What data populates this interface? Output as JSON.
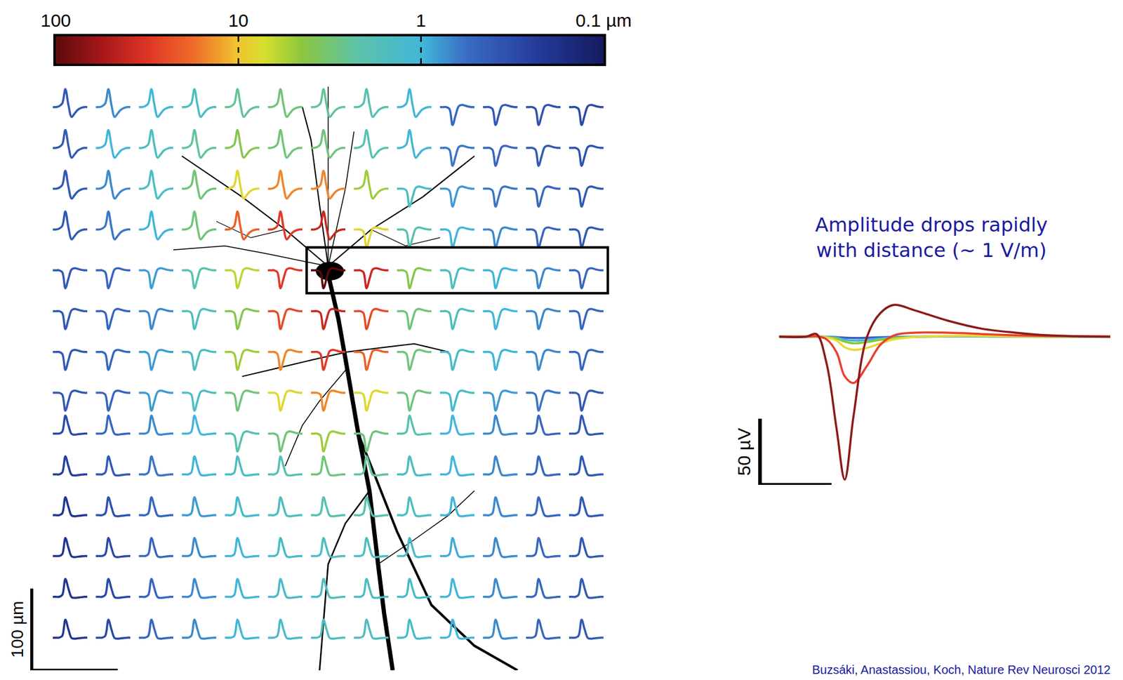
{
  "chart_data": {
    "type": "waveform_grid",
    "tick_labels": false,
    "colorbar": {
      "range": [
        100,
        0.1
      ],
      "log": true,
      "ticks": [
        100,
        10,
        1,
        {
          "value": 0.1,
          "label": "0.1 µm"
        }
      ]
    },
    "xlim": [
      -80,
      630
    ],
    "ylim": [
      -25,
      690
    ],
    "scale_bar": {
      "value": 100,
      "label": "100 µm"
    },
    "waveforms": {
      "b": [
        0,
        0,
        0.05,
        0.2,
        1,
        0.1,
        -0.55,
        -0.35,
        -0.15,
        -0.05,
        0,
        0
      ],
      "n": [
        0,
        0,
        0,
        -0.1,
        -1,
        -0.45,
        0.05,
        0.12,
        0.08,
        0.03,
        0,
        0
      ],
      "p": [
        0,
        0,
        0,
        0.1,
        1,
        0.45,
        -0.02,
        -0.06,
        -0.04,
        -0.02,
        0,
        0
      ]
    },
    "grid": {
      "x": [
        0,
        50,
        100,
        150,
        200,
        250,
        300,
        350,
        400,
        450,
        500,
        550,
        600
      ],
      "y": [
        0,
        50,
        100,
        150,
        200,
        250,
        300,
        350,
        400,
        450,
        500,
        550,
        600,
        650
      ],
      "amplitudes": [
        [
          0.4,
          0.7,
          1,
          1.5,
          2.5,
          3,
          2.5,
          2,
          1,
          0.5,
          0.4,
          0.35,
          0.3
        ],
        [
          0.4,
          1,
          1.5,
          2.5,
          4,
          3,
          3,
          2,
          1,
          0.6,
          0.5,
          0.4,
          0.35
        ],
        [
          0.4,
          0.7,
          1.5,
          3,
          8,
          15,
          15,
          5,
          1.5,
          0.8,
          0.6,
          0.5,
          0.4
        ],
        [
          0.4,
          0.6,
          1,
          3,
          20,
          30,
          40,
          8,
          2,
          1,
          0.7,
          0.5,
          0.4
        ],
        [
          0.4,
          0.5,
          0.8,
          2,
          6,
          30,
          100,
          40,
          4,
          1.5,
          1,
          0.7,
          0.5
        ],
        [
          0.4,
          0.5,
          0.7,
          1.5,
          4,
          25,
          40,
          25,
          3,
          1.5,
          1,
          0.7,
          0.5
        ],
        [
          0.4,
          0.5,
          0.8,
          1.5,
          5,
          15,
          30,
          20,
          3,
          1.3,
          1,
          0.7,
          0.5
        ],
        [
          0.4,
          0.5,
          0.8,
          1.5,
          3,
          8,
          15,
          8,
          3,
          1.3,
          0.8,
          0.6,
          0.4
        ],
        [
          0.3,
          0.5,
          0.7,
          1,
          2,
          3,
          5,
          3,
          2,
          1,
          0.7,
          0.5,
          0.4
        ],
        [
          0.25,
          0.4,
          0.6,
          1,
          1.5,
          2,
          3,
          2.5,
          1.5,
          1,
          0.7,
          0.5,
          0.4
        ],
        [
          0.2,
          0.35,
          0.5,
          0.8,
          1.2,
          1.5,
          2,
          2,
          1.5,
          1,
          0.7,
          0.5,
          0.4
        ],
        [
          0.2,
          0.3,
          0.5,
          0.7,
          1,
          1.3,
          1.5,
          1.5,
          1.3,
          0.9,
          0.7,
          0.5,
          0.4
        ],
        [
          0.2,
          0.3,
          0.5,
          0.7,
          1,
          1.3,
          1.5,
          1.5,
          1.3,
          1,
          0.7,
          0.5,
          0.4
        ],
        [
          0.2,
          0.3,
          0.5,
          0.7,
          1,
          1.3,
          1.5,
          1.5,
          1.3,
          1,
          0.7,
          0.5,
          0.4
        ]
      ],
      "shapes": [
        [
          "b",
          "b",
          "b",
          "b",
          "b",
          "b",
          "b",
          "b",
          "b",
          "n",
          "n",
          "n",
          "n"
        ],
        [
          "b",
          "b",
          "b",
          "b",
          "b",
          "b",
          "b",
          "b",
          "b",
          "n",
          "n",
          "n",
          "n"
        ],
        [
          "b",
          "b",
          "b",
          "b",
          "b",
          "b",
          "b",
          "b",
          "n",
          "n",
          "n",
          "n",
          "n"
        ],
        [
          "b",
          "b",
          "b",
          "b",
          "b",
          "b",
          "b",
          "n",
          "n",
          "n",
          "n",
          "n",
          "n"
        ],
        [
          "n",
          "n",
          "n",
          "n",
          "n",
          "n",
          "n",
          "n",
          "n",
          "n",
          "n",
          "n",
          "n"
        ],
        [
          "n",
          "n",
          "n",
          "n",
          "n",
          "n",
          "n",
          "n",
          "n",
          "n",
          "n",
          "n",
          "n"
        ],
        [
          "n",
          "n",
          "n",
          "n",
          "n",
          "n",
          "n",
          "n",
          "n",
          "n",
          "n",
          "n",
          "n"
        ],
        [
          "n",
          "n",
          "n",
          "n",
          "n",
          "n",
          "n",
          "n",
          "n",
          "n",
          "n",
          "n",
          "n"
        ],
        [
          "p",
          "p",
          "p",
          "p",
          "n",
          "n",
          "n",
          "n",
          "p",
          "p",
          "p",
          "p",
          "p"
        ],
        [
          "p",
          "p",
          "p",
          "p",
          "p",
          "p",
          "p",
          "p",
          "p",
          "p",
          "p",
          "p",
          "p"
        ],
        [
          "p",
          "p",
          "p",
          "p",
          "p",
          "p",
          "p",
          "p",
          "p",
          "p",
          "p",
          "p",
          "p"
        ],
        [
          "p",
          "p",
          "p",
          "p",
          "p",
          "p",
          "p",
          "p",
          "p",
          "p",
          "p",
          "p",
          "p"
        ],
        [
          "p",
          "p",
          "p",
          "p",
          "p",
          "p",
          "p",
          "p",
          "p",
          "p",
          "p",
          "p",
          "p"
        ],
        [
          "p",
          "p",
          "p",
          "p",
          "p",
          "p",
          "p",
          "p",
          "p",
          "p",
          "p",
          "p",
          "p"
        ]
      ]
    },
    "highlight": {
      "row": 4,
      "cols": [
        6,
        12
      ]
    },
    "inset": {
      "annotation": [
        "Amplitude drops rapidly",
        "with distance (~ 1 V/m)"
      ],
      "xlim": [
        -0.5,
        4.9
      ],
      "ylim": [
        -112,
        30
      ],
      "scale_bar": {
        "value": 50,
        "label": "50 µV"
      },
      "x": [
        0,
        0.4,
        0.55,
        0.7,
        0.85,
        0.97,
        1.1,
        1.3,
        1.5,
        1.7,
        2.0,
        2.5,
        3.0,
        3.5,
        4.0,
        4.9
      ],
      "series": [
        {
          "color": "#3a5cc0",
          "values": [
            0,
            0,
            0,
            0,
            -0.3,
            -0.8,
            -1,
            -0.8,
            -0.5,
            -0.2,
            0,
            0.1,
            0.1,
            0,
            0,
            0
          ]
        },
        {
          "color": "#43b8d6",
          "values": [
            0,
            0,
            0,
            -0.2,
            -0.8,
            -2.2,
            -3,
            -2.4,
            -1.4,
            -0.6,
            -0.1,
            0.2,
            0.2,
            0.1,
            0,
            0
          ]
        },
        {
          "color": "#8cc63f",
          "values": [
            0,
            0,
            0,
            -0.3,
            -1.5,
            -3.8,
            -5,
            -4,
            -2.4,
            -1,
            -0.2,
            0.3,
            0.3,
            0.1,
            0,
            0
          ]
        },
        {
          "color": "#e6d93a",
          "values": [
            0,
            0,
            0,
            -0.6,
            -3,
            -8,
            -10,
            -8.5,
            -5,
            -2,
            -0.3,
            0.6,
            0.6,
            0.3,
            0.1,
            0
          ]
        },
        {
          "color": "#e8412c",
          "values": [
            0,
            0,
            0.3,
            -2,
            -12,
            -30,
            -35,
            -22,
            -6,
            1,
            3,
            3,
            2,
            1,
            0.4,
            0
          ]
        },
        {
          "color": "#8b1a1a",
          "values": [
            0,
            0,
            2,
            -20,
            -70,
            -108,
            -60,
            0,
            18,
            24,
            20,
            12,
            6,
            3,
            1,
            0
          ]
        }
      ]
    },
    "source": "Buzsáki, Anastassiou, Koch, Nature Rev Neurosci 2012"
  }
}
